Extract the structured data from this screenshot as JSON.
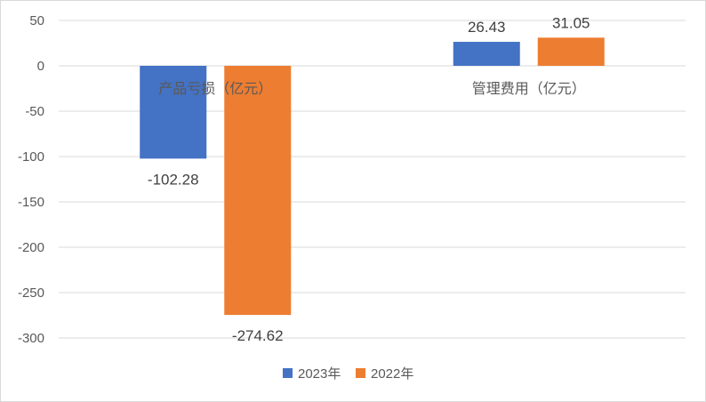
{
  "chart_data": {
    "type": "bar",
    "categories": [
      "产品亏损（亿元）",
      "管理费用（亿元）"
    ],
    "series": [
      {
        "name": "2023年",
        "values": [
          -102.28,
          26.43
        ],
        "labels": [
          "-102.28",
          "26.43"
        ],
        "color": "#4472C4"
      },
      {
        "name": "2022年",
        "values": [
          -274.62,
          31.05
        ],
        "labels": [
          "-274.62",
          "31.05"
        ],
        "color": "#ED7D31"
      }
    ],
    "ylim": [
      -300,
      50
    ],
    "yticks": [
      "50",
      "0",
      "-50",
      "-100",
      "-150",
      "-200",
      "-250",
      "-300"
    ],
    "grid": true,
    "legend": "bottom"
  }
}
